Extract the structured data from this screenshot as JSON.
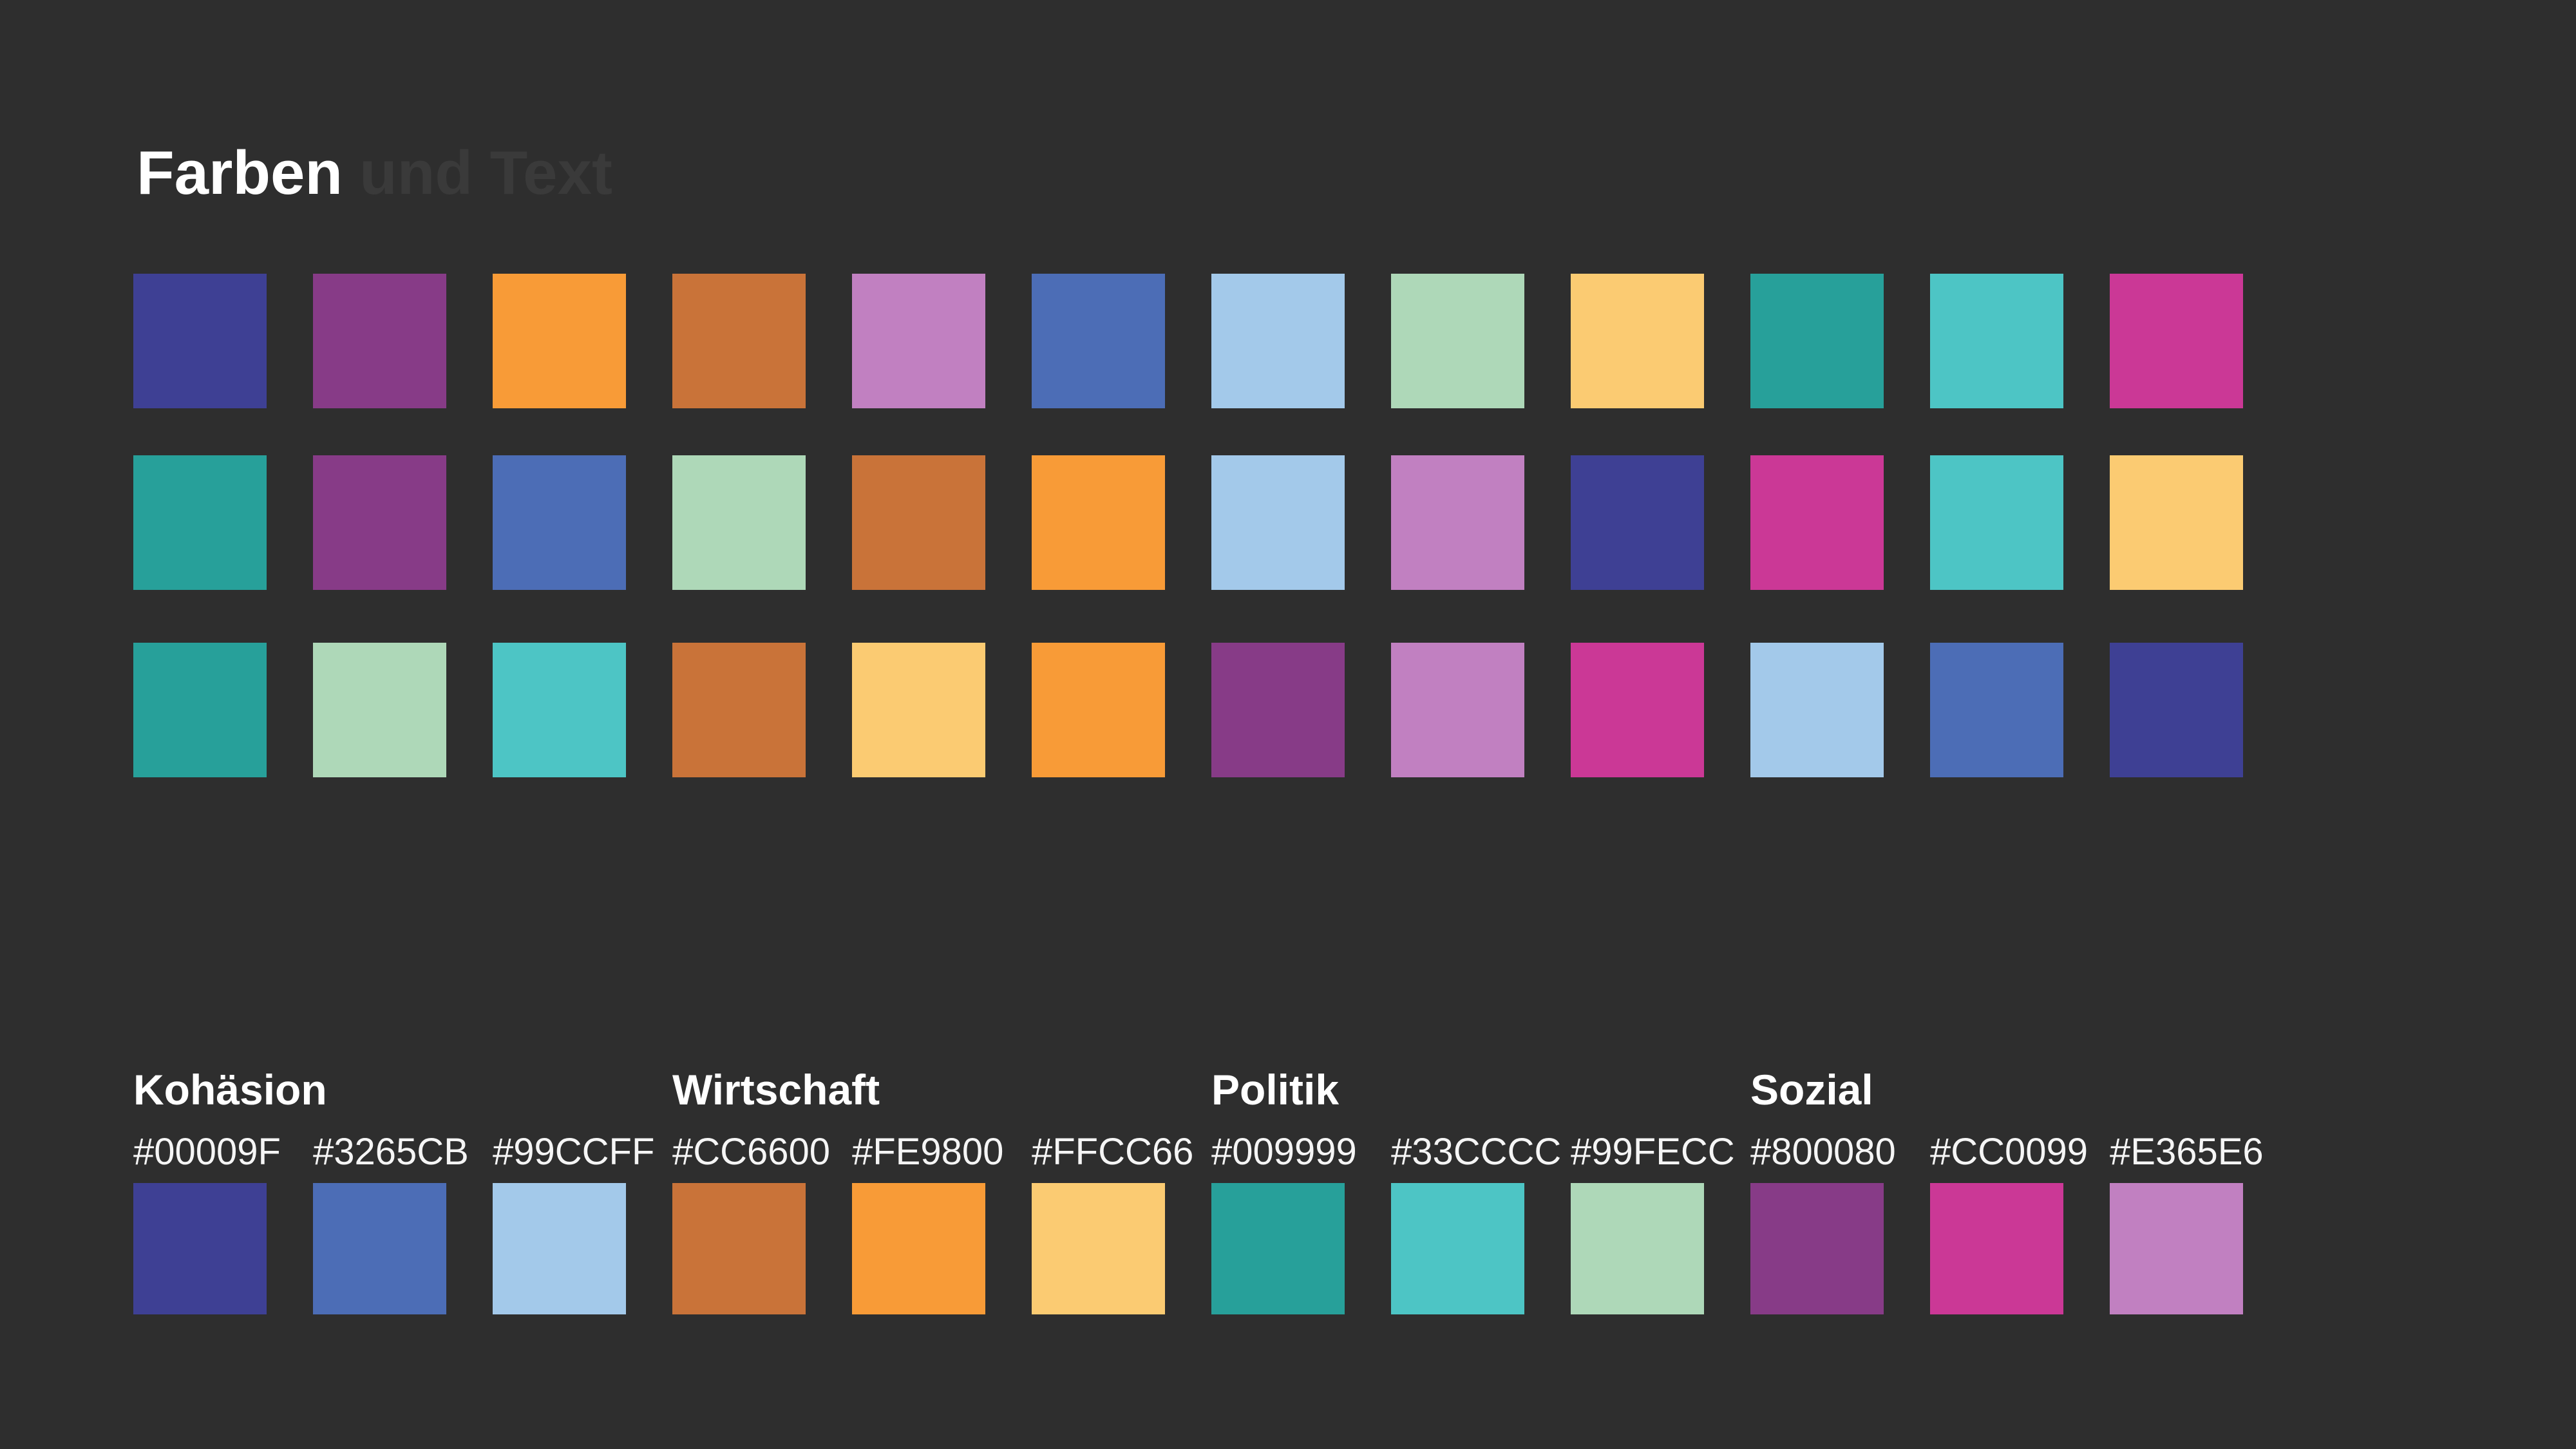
{
  "page": {
    "background": "#2e2e2e"
  },
  "title": {
    "primary": "Farben",
    "secondary": "und Text",
    "primary_color": "#ffffff",
    "secondary_color": "#3a3a3a"
  },
  "palette": [
    {
      "id": "indigo",
      "hex_label": "#00009F",
      "display": "#3E4094"
    },
    {
      "id": "blue",
      "hex_label": "#3265CB",
      "display": "#4C6DB6"
    },
    {
      "id": "lightblue",
      "hex_label": "#99CCFF",
      "display": "#A3C9EA"
    },
    {
      "id": "terracotta",
      "hex_label": "#CC6600",
      "display": "#C97339"
    },
    {
      "id": "orange",
      "hex_label": "#FE9800",
      "display": "#F89B37"
    },
    {
      "id": "lightyellow",
      "hex_label": "#FFCC66",
      "display": "#FBCB72"
    },
    {
      "id": "teal",
      "hex_label": "#009999",
      "display": "#27A09A"
    },
    {
      "id": "turquoise",
      "hex_label": "#33CCCC",
      "display": "#4DC5C5"
    },
    {
      "id": "lightgreen",
      "hex_label": "#99FECC",
      "display": "#AED8B8"
    },
    {
      "id": "purple",
      "hex_label": "#800080",
      "display": "#873B87"
    },
    {
      "id": "magenta",
      "hex_label": "#CC0099",
      "display": "#CB3896"
    },
    {
      "id": "lilac",
      "hex_label": "#E365E6",
      "display": "#C180C1"
    }
  ],
  "swatch_rows": [
    [
      "indigo",
      "purple",
      "orange",
      "terracotta",
      "lilac",
      "blue",
      "lightblue",
      "lightgreen",
      "lightyellow",
      "teal",
      "turquoise",
      "magenta"
    ],
    [
      "teal",
      "purple",
      "blue",
      "lightgreen",
      "terracotta",
      "orange",
      "lightblue",
      "lilac",
      "indigo",
      "magenta",
      "turquoise",
      "lightyellow"
    ],
    [
      "teal",
      "lightgreen",
      "turquoise",
      "terracotta",
      "lightyellow",
      "orange",
      "purple",
      "lilac",
      "magenta",
      "lightblue",
      "blue",
      "indigo"
    ]
  ],
  "groups": [
    {
      "name": "Kohäsion",
      "colors": [
        "indigo",
        "blue",
        "lightblue"
      ]
    },
    {
      "name": "Wirtschaft",
      "colors": [
        "terracotta",
        "orange",
        "lightyellow"
      ]
    },
    {
      "name": "Politik",
      "colors": [
        "teal",
        "turquoise",
        "lightgreen"
      ]
    },
    {
      "name": "Sozial",
      "colors": [
        "purple",
        "magenta",
        "lilac"
      ]
    }
  ]
}
